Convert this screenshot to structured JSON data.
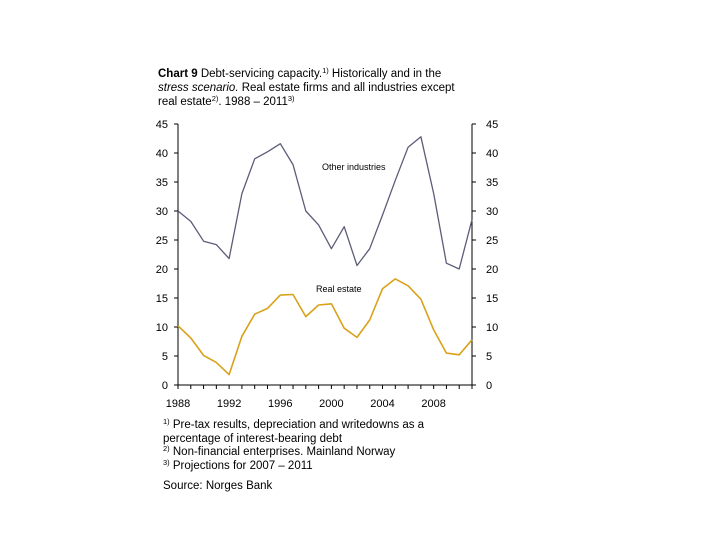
{
  "title": {
    "label": "Chart 9",
    "line1": "Debt-servicing capacity.",
    "sup1": "1)",
    "line1b": " Historically and in the",
    "line2": "stress scenario.",
    "line2b": " Real estate firms and all industries except",
    "line3": "real estate",
    "sup2": "2)",
    "line3b": ". 1988 – 2011",
    "sup3": "3)"
  },
  "chart_data": {
    "type": "line",
    "x": [
      1988,
      1989,
      1990,
      1991,
      1992,
      1993,
      1994,
      1995,
      1996,
      1997,
      1998,
      1999,
      2000,
      2001,
      2002,
      2003,
      2004,
      2005,
      2006,
      2007,
      2008,
      2009,
      2010,
      2011
    ],
    "xticks": [
      "1988",
      "1992",
      "1996",
      "2000",
      "2004",
      "2008"
    ],
    "yticks_left": [
      "45",
      "40",
      "35",
      "30",
      "25",
      "20",
      "15",
      "10",
      "5",
      "0"
    ],
    "yticks_right": [
      "45",
      "40",
      "35",
      "30",
      "25",
      "20",
      "15",
      "10",
      "5",
      "0"
    ],
    "ylim": [
      0,
      45
    ],
    "xlim": [
      1988,
      2011
    ],
    "series": [
      {
        "name": "Other industries",
        "color": "#5c5c78",
        "values": [
          30,
          28.2,
          24.8,
          24.2,
          21.8,
          33,
          39,
          40.2,
          41.6,
          38,
          30,
          27.6,
          23.5,
          27.3,
          20.6,
          23.5,
          29.3,
          35.3,
          41,
          42.8,
          33,
          21,
          20,
          28.5
        ]
      },
      {
        "name": "Real estate",
        "color": "#d9a21a",
        "values": [
          10.2,
          8.1,
          5.1,
          3.9,
          1.8,
          8.4,
          12.2,
          13.2,
          15.5,
          15.6,
          11.8,
          13.8,
          14,
          9.8,
          8.2,
          11.2,
          16.6,
          18.3,
          17.1,
          14.8,
          9.5,
          5.5,
          5.2,
          7.8
        ]
      }
    ]
  },
  "footnotes": {
    "fn1_sup": "1)",
    "fn1": " Pre-tax results, depreciation and writedowns as a percentage of interest-bearing debt",
    "fn2_sup": "2)",
    "fn2": " Non-financial enterprises. Mainland Norway",
    "fn3_sup": "3)",
    "fn3": " Projections for 2007 – 2011",
    "source": "Source: Norges Bank"
  }
}
